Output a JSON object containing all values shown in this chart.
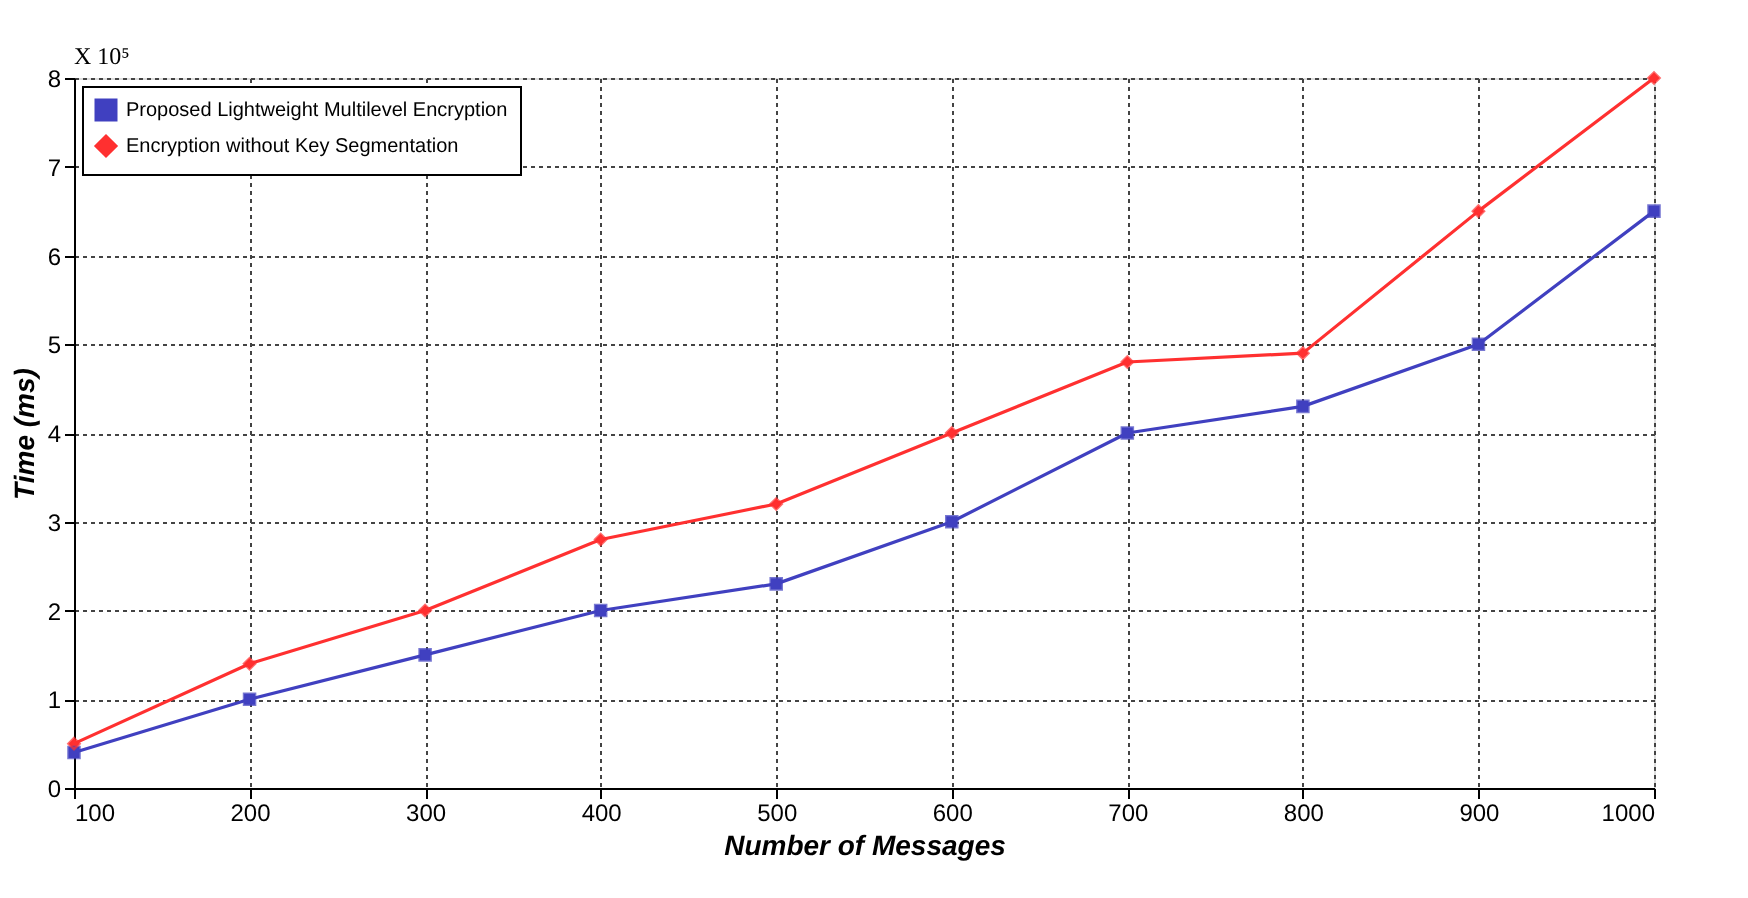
{
  "chart_data": {
    "type": "line",
    "xlabel": "Number of Messages",
    "ylabel": "Time (ms)",
    "annotations": [
      "X 10⁵"
    ],
    "x": [
      100,
      200,
      300,
      400,
      500,
      600,
      700,
      800,
      900,
      1000
    ],
    "series": [
      {
        "name": "Proposed Lightweight Multilevel Encryption",
        "color": "#4040c0",
        "marker": "square",
        "values": [
          0.4,
          1.0,
          1.5,
          2.0,
          2.3,
          3.0,
          4.0,
          4.3,
          5.0,
          6.5
        ]
      },
      {
        "name": "Encryption without Key Segmentation",
        "color": "#ff3030",
        "marker": "diamond",
        "values": [
          0.5,
          1.4,
          2.0,
          2.8,
          3.2,
          4.0,
          4.8,
          4.9,
          6.5,
          8.0
        ]
      }
    ],
    "xlim": [
      100,
      1000
    ],
    "xticks": [
      100,
      200,
      300,
      400,
      500,
      600,
      700,
      800,
      900,
      1000
    ],
    "ylim": [
      0,
      8
    ],
    "yticks": [
      0,
      1,
      2,
      3,
      4,
      5,
      6,
      7,
      8
    ],
    "grid": true,
    "legend": "top left",
    "line_style": "solid"
  }
}
